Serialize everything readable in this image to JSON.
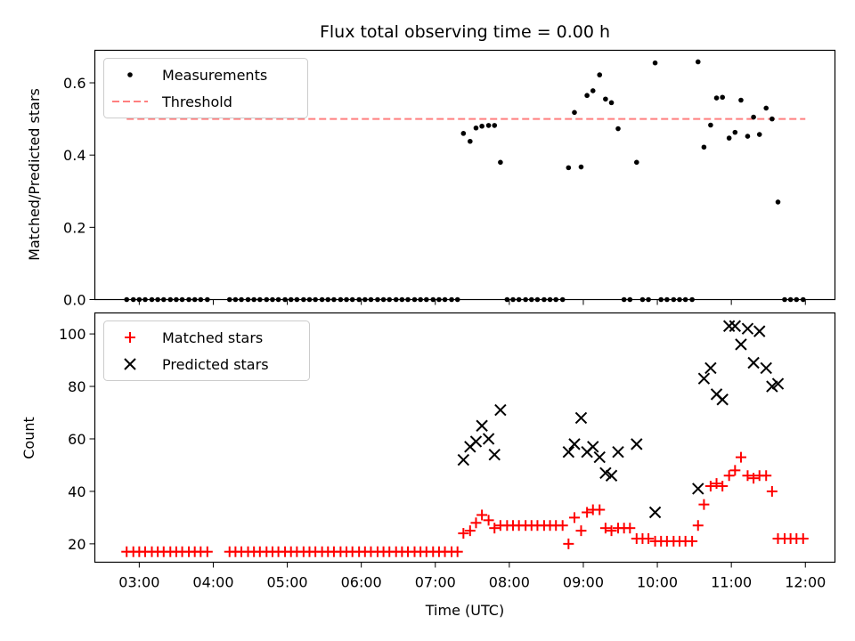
{
  "chart_data": [
    {
      "type": "scatter",
      "title": "Flux total observing time = 0.00 h",
      "xlabel": "",
      "ylabel": "Matched/Predicted stars",
      "xlim": [
        2.4,
        12.4
      ],
      "ylim": [
        0.0,
        0.69
      ],
      "yticks": [
        0.0,
        0.2,
        0.4,
        0.6
      ],
      "ytick_labels": [
        "0.0",
        "0.2",
        "0.4",
        "0.6"
      ],
      "legend": {
        "placement": "upper-left",
        "entries": [
          "Measurements",
          "Threshold"
        ]
      },
      "threshold": {
        "name": "Threshold",
        "value": 0.5,
        "x_range": [
          2.83,
          12.0
        ],
        "color": "#ff7f7f"
      },
      "series": [
        {
          "name": "Measurements",
          "color": "#000000",
          "marker": "dot",
          "x": [
            2.83,
            2.92,
            3.0,
            3.08,
            3.17,
            3.25,
            3.33,
            3.42,
            3.5,
            3.58,
            3.67,
            3.75,
            3.83,
            3.92,
            4.22,
            4.3,
            4.38,
            4.47,
            4.55,
            4.63,
            4.72,
            4.8,
            4.88,
            4.97,
            5.05,
            5.13,
            5.22,
            5.3,
            5.38,
            5.47,
            5.55,
            5.63,
            5.72,
            5.8,
            5.88,
            5.97,
            6.05,
            6.13,
            6.22,
            6.3,
            6.38,
            6.47,
            6.55,
            6.63,
            6.72,
            6.8,
            6.88,
            6.97,
            7.05,
            7.13,
            7.22,
            7.3,
            7.38,
            7.47,
            7.55,
            7.63,
            7.72,
            7.8,
            7.88,
            7.97,
            8.05,
            8.13,
            8.22,
            8.3,
            8.38,
            8.47,
            8.55,
            8.63,
            8.72,
            8.8,
            8.88,
            8.97,
            9.05,
            9.13,
            9.22,
            9.3,
            9.38,
            9.47,
            9.55,
            9.63,
            9.72,
            9.8,
            9.88,
            9.97,
            10.05,
            10.13,
            10.22,
            10.3,
            10.38,
            10.47,
            10.55,
            10.63,
            10.72,
            10.8,
            10.88,
            10.97,
            11.05,
            11.13,
            11.22,
            11.3,
            11.38,
            11.47,
            11.55,
            11.63,
            11.72,
            11.8,
            11.88,
            11.97
          ],
          "y": [
            0,
            0,
            0,
            0,
            0,
            0,
            0,
            0,
            0,
            0,
            0,
            0,
            0,
            0,
            0,
            0,
            0,
            0,
            0,
            0,
            0,
            0,
            0,
            0,
            0,
            0,
            0,
            0,
            0,
            0,
            0,
            0,
            0,
            0,
            0,
            0,
            0,
            0,
            0,
            0,
            0,
            0,
            0,
            0,
            0,
            0,
            0,
            0,
            0,
            0,
            0,
            0,
            0.46,
            0.438,
            0.475,
            0.48,
            0.482,
            0.482,
            0.38,
            0,
            0,
            0,
            0,
            0,
            0,
            0,
            0,
            0,
            0,
            0.365,
            0.518,
            0.367,
            0.565,
            0.578,
            0.622,
            0.555,
            0.545,
            0.473,
            0,
            0,
            0.38,
            0,
            0,
            0.655,
            0,
            0,
            0,
            0,
            0,
            0,
            0.658,
            0.422,
            0.483,
            0.558,
            0.56,
            0.447,
            0.463,
            0.552,
            0.452,
            0.505,
            0.457,
            0.53,
            0.5,
            0.27,
            0,
            0,
            0,
            0
          ]
        }
      ]
    },
    {
      "type": "scatter",
      "title": "",
      "xlabel": "Time (UTC)",
      "ylabel": "Count",
      "xlim": [
        2.4,
        12.4
      ],
      "ylim": [
        13,
        108
      ],
      "yticks": [
        20,
        40,
        60,
        80,
        100
      ],
      "ytick_labels": [
        "20",
        "40",
        "60",
        "80",
        "100"
      ],
      "xticks": [
        3,
        4,
        5,
        6,
        7,
        8,
        9,
        10,
        11,
        12
      ],
      "xtick_labels": [
        "03:00",
        "04:00",
        "05:00",
        "06:00",
        "07:00",
        "08:00",
        "09:00",
        "10:00",
        "11:00",
        "12:00"
      ],
      "legend": {
        "placement": "upper-left",
        "entries": [
          "Matched stars",
          "Predicted stars"
        ]
      },
      "series": [
        {
          "name": "Matched stars",
          "color": "#ff0000",
          "marker": "plus",
          "x": [
            2.83,
            2.92,
            3.0,
            3.08,
            3.17,
            3.25,
            3.33,
            3.42,
            3.5,
            3.58,
            3.67,
            3.75,
            3.83,
            3.92,
            4.22,
            4.3,
            4.38,
            4.47,
            4.55,
            4.63,
            4.72,
            4.8,
            4.88,
            4.97,
            5.05,
            5.13,
            5.22,
            5.3,
            5.38,
            5.47,
            5.55,
            5.63,
            5.72,
            5.8,
            5.88,
            5.97,
            6.05,
            6.13,
            6.22,
            6.3,
            6.38,
            6.47,
            6.55,
            6.63,
            6.72,
            6.8,
            6.88,
            6.97,
            7.05,
            7.13,
            7.22,
            7.3,
            7.38,
            7.47,
            7.55,
            7.63,
            7.72,
            7.8,
            7.88,
            7.97,
            8.05,
            8.13,
            8.22,
            8.3,
            8.38,
            8.47,
            8.55,
            8.63,
            8.72,
            8.8,
            8.88,
            8.97,
            9.05,
            9.13,
            9.22,
            9.3,
            9.38,
            9.47,
            9.55,
            9.63,
            9.72,
            9.8,
            9.88,
            9.97,
            10.05,
            10.13,
            10.22,
            10.3,
            10.38,
            10.47,
            10.55,
            10.63,
            10.72,
            10.8,
            10.88,
            10.97,
            11.05,
            11.13,
            11.22,
            11.3,
            11.38,
            11.47,
            11.55,
            11.63,
            11.72,
            11.8,
            11.88,
            11.97
          ],
          "y": [
            17,
            17,
            17,
            17,
            17,
            17,
            17,
            17,
            17,
            17,
            17,
            17,
            17,
            17,
            17,
            17,
            17,
            17,
            17,
            17,
            17,
            17,
            17,
            17,
            17,
            17,
            17,
            17,
            17,
            17,
            17,
            17,
            17,
            17,
            17,
            17,
            17,
            17,
            17,
            17,
            17,
            17,
            17,
            17,
            17,
            17,
            17,
            17,
            17,
            17,
            17,
            17,
            24,
            25,
            28,
            31,
            29,
            26,
            27,
            27,
            27,
            27,
            27,
            27,
            27,
            27,
            27,
            27,
            27,
            20,
            30,
            25,
            32,
            33,
            33,
            26,
            25,
            26,
            26,
            26,
            22,
            22,
            22,
            21,
            21,
            21,
            21,
            21,
            21,
            21,
            27,
            35,
            42,
            43,
            42,
            46,
            48,
            53,
            46,
            45,
            46,
            46,
            40,
            22,
            22,
            22,
            22,
            22
          ]
        },
        {
          "name": "Predicted stars",
          "color": "#000000",
          "marker": "x",
          "x": [
            7.38,
            7.47,
            7.55,
            7.63,
            7.72,
            7.8,
            7.88,
            8.8,
            8.88,
            8.97,
            9.05,
            9.13,
            9.22,
            9.3,
            9.38,
            9.47,
            9.72,
            9.97,
            10.55,
            10.63,
            10.72,
            10.8,
            10.88,
            10.97,
            11.05,
            11.13,
            11.22,
            11.3,
            11.38,
            11.47,
            11.55,
            11.63
          ],
          "y": [
            52,
            57,
            59,
            65,
            60,
            54,
            71,
            55,
            58,
            68,
            55,
            57,
            53,
            47,
            46,
            55,
            58,
            32,
            41,
            83,
            87,
            77,
            75,
            103,
            103,
            96,
            102,
            89,
            101,
            87,
            80,
            81
          ]
        }
      ]
    }
  ]
}
